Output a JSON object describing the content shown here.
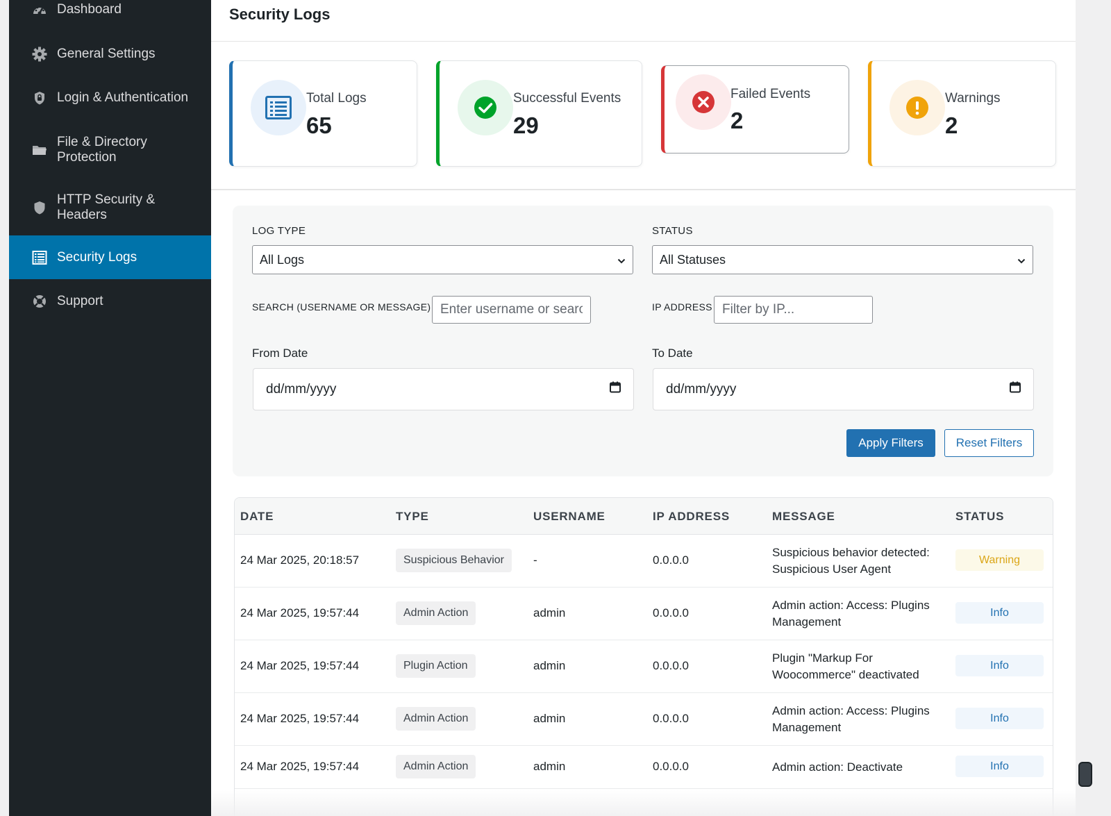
{
  "sidebar": {
    "items": [
      {
        "label": "Dashboard",
        "icon": "dashboard-icon"
      },
      {
        "label": "General Settings",
        "icon": "gear-icon"
      },
      {
        "label": "Login & Authentication",
        "icon": "lock-icon"
      },
      {
        "label": "File & Directory Protection",
        "icon": "folder-icon"
      },
      {
        "label": "HTTP Security & Headers",
        "icon": "shield-icon"
      },
      {
        "label": "Security Logs",
        "icon": "list-icon",
        "active": true
      },
      {
        "label": "Support",
        "icon": "lifebuoy-icon"
      }
    ]
  },
  "page": {
    "title": "Security Logs"
  },
  "stats": [
    {
      "label": "Total Logs",
      "value": "65",
      "color": "#2271b1",
      "icon": "list-icon"
    },
    {
      "label": "Successful Events",
      "value": "29",
      "color": "#00a32a",
      "icon": "check-circle-icon"
    },
    {
      "label": "Failed Events",
      "value": "2",
      "color": "#d63638",
      "icon": "x-circle-icon"
    },
    {
      "label": "Warnings",
      "value": "2",
      "color": "#f0a30a",
      "icon": "exclamation-circle-icon"
    }
  ],
  "filters": {
    "log_type_label": "Log Type",
    "log_type_value": "All Logs",
    "status_label": "Status",
    "status_value": "All Statuses",
    "search_label": "Search (Username or Message)",
    "search_placeholder": "Enter username or search...",
    "ip_label": "IP Address",
    "ip_placeholder": "Filter by IP...",
    "from_label": "From Date",
    "from_value": "dd/mm/yyyy",
    "to_label": "To Date",
    "to_value": "dd/mm/yyyy",
    "apply_label": "Apply Filters",
    "reset_label": "Reset Filters"
  },
  "table": {
    "columns": [
      "DATE",
      "TYPE",
      "USERNAME",
      "IP ADDRESS",
      "MESSAGE",
      "STATUS"
    ],
    "rows": [
      {
        "date": "24 Mar 2025, 20:18:57",
        "type": "Suspicious Behavior",
        "username": "-",
        "ip": "0.0.0.0",
        "message": "Suspicious behavior detected: Suspicious User Agent",
        "status": "Warning"
      },
      {
        "date": "24 Mar 2025, 19:57:44",
        "type": "Admin Action",
        "username": "admin",
        "ip": "0.0.0.0",
        "message": "Admin action: Access: Plugins Management",
        "status": "Info"
      },
      {
        "date": "24 Mar 2025, 19:57:44",
        "type": "Plugin Action",
        "username": "admin",
        "ip": "0.0.0.0",
        "message": "Plugin \"Markup For Woocommerce\" deactivated",
        "status": "Info"
      },
      {
        "date": "24 Mar 2025, 19:57:44",
        "type": "Admin Action",
        "username": "admin",
        "ip": "0.0.0.0",
        "message": "Admin action: Access: Plugins Management",
        "status": "Info"
      },
      {
        "date": "24 Mar 2025, 19:57:44",
        "type": "Admin Action",
        "username": "admin",
        "ip": "0.0.0.0",
        "message": "Admin action: Deactivate",
        "status": "Info"
      }
    ]
  }
}
